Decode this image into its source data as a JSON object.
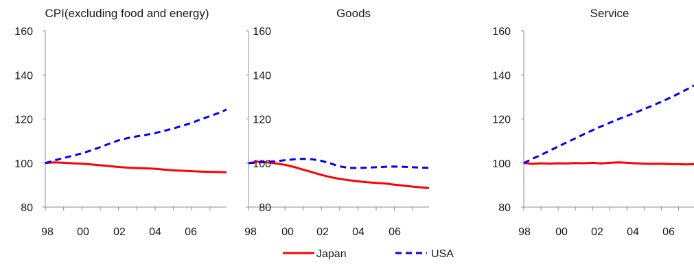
{
  "chart_data": [
    {
      "type": "line",
      "title": "CPI(excluding food and energy)",
      "xlabel": "",
      "ylabel": "",
      "x_tick_labels": [
        "98",
        "00",
        "02",
        "04",
        "06"
      ],
      "x_tick_years": [
        1998,
        2000,
        2002,
        2004,
        2006
      ],
      "xlim": [
        1998,
        2007.9
      ],
      "ylim": [
        80,
        160
      ],
      "y_ticks": [
        80,
        100,
        120,
        140,
        160
      ],
      "grid": false,
      "series": [
        {
          "name": "Japan",
          "color": "#ff0000",
          "style": "solid",
          "x": [
            1998,
            1998.5,
            1999,
            1999.5,
            2000,
            2000.5,
            2001,
            2001.5,
            2002,
            2002.5,
            2003,
            2003.5,
            2004,
            2004.5,
            2005,
            2005.5,
            2006,
            2006.5,
            2007,
            2007.5,
            2007.9
          ],
          "values": [
            100,
            100.3,
            100.1,
            99.9,
            99.7,
            99.4,
            99.0,
            98.6,
            98.2,
            97.9,
            97.7,
            97.6,
            97.4,
            97.0,
            96.7,
            96.5,
            96.3,
            96.1,
            96.0,
            95.9,
            95.8
          ]
        },
        {
          "name": "USA",
          "color": "#0000ff",
          "style": "dashed",
          "x": [
            1998,
            1998.5,
            1999,
            1999.5,
            2000,
            2000.5,
            2001,
            2001.5,
            2002,
            2002.5,
            2003,
            2003.5,
            2004,
            2004.5,
            2005,
            2005.5,
            2006,
            2006.5,
            2007,
            2007.5,
            2007.9
          ],
          "values": [
            100,
            101.2,
            102.3,
            103.3,
            104.4,
            105.7,
            107.2,
            108.8,
            110.3,
            111.3,
            112.1,
            112.8,
            113.6,
            114.6,
            115.7,
            116.9,
            118.3,
            119.8,
            121.3,
            122.8,
            124.3
          ]
        }
      ]
    },
    {
      "type": "line",
      "title": "Goods",
      "xlabel": "",
      "ylabel": "",
      "x_tick_labels": [
        "98",
        "00",
        "02",
        "04",
        "06"
      ],
      "x_tick_years": [
        1998,
        2000,
        2002,
        2004,
        2006
      ],
      "xlim": [
        1998,
        2007.9
      ],
      "ylim": [
        80,
        160
      ],
      "y_ticks": [
        80,
        100,
        120,
        140,
        160
      ],
      "grid": false,
      "series": [
        {
          "name": "Japan",
          "color": "#ff0000",
          "style": "solid",
          "x": [
            1998,
            1998.5,
            1999,
            1999.5,
            2000,
            2000.5,
            2001,
            2001.5,
            2002,
            2002.5,
            2003,
            2003.5,
            2004,
            2004.5,
            2005,
            2005.5,
            2006,
            2006.5,
            2007,
            2007.5,
            2007.9
          ],
          "values": [
            100,
            100.6,
            100.3,
            99.8,
            99.2,
            98.2,
            97.0,
            95.8,
            94.6,
            93.6,
            92.8,
            92.2,
            91.7,
            91.3,
            91.0,
            90.7,
            90.2,
            89.7,
            89.3,
            88.9,
            88.6
          ]
        },
        {
          "name": "USA",
          "color": "#0000ff",
          "style": "dashed",
          "x": [
            1998,
            1998.5,
            1999,
            1999.5,
            2000,
            2000.5,
            2001,
            2001.5,
            2002,
            2002.5,
            2003,
            2003.5,
            2004,
            2004.5,
            2005,
            2005.5,
            2006,
            2006.5,
            2007,
            2007.5,
            2007.9
          ],
          "values": [
            100,
            100.2,
            100.5,
            100.8,
            101.3,
            101.7,
            101.9,
            101.7,
            101.0,
            99.8,
            98.5,
            97.8,
            97.7,
            97.9,
            98.1,
            98.3,
            98.4,
            98.3,
            98.1,
            97.9,
            97.8
          ]
        }
      ]
    },
    {
      "type": "line",
      "title": "Service",
      "xlabel": "",
      "ylabel": "",
      "x_tick_labels": [
        "98",
        "00",
        "02",
        "04",
        "06"
      ],
      "x_tick_years": [
        1998,
        2000,
        2002,
        2004,
        2006
      ],
      "xlim": [
        1998,
        2007.9
      ],
      "ylim": [
        80,
        160
      ],
      "y_ticks": [
        80,
        100,
        120,
        140,
        160
      ],
      "grid": false,
      "series": [
        {
          "name": "Japan",
          "color": "#ff0000",
          "style": "solid",
          "x": [
            1998,
            1998.5,
            1999,
            1999.5,
            2000,
            2000.5,
            2001,
            2001.5,
            2002,
            2002.5,
            2003,
            2003.5,
            2004,
            2004.5,
            2005,
            2005.5,
            2006,
            2006.5,
            2007,
            2007.5,
            2007.9
          ],
          "values": [
            100,
            99.6,
            99.9,
            99.7,
            99.9,
            99.8,
            100.0,
            99.9,
            100.1,
            99.8,
            100.1,
            100.3,
            100.1,
            99.9,
            99.7,
            99.6,
            99.7,
            99.5,
            99.5,
            99.4,
            99.5
          ]
        },
        {
          "name": "USA",
          "color": "#0000ff",
          "style": "dashed",
          "x": [
            1998,
            1998.5,
            1999,
            1999.5,
            2000,
            2000.5,
            2001,
            2001.5,
            2002,
            2002.5,
            2003,
            2003.5,
            2004,
            2004.5,
            2005,
            2005.5,
            2006,
            2006.5,
            2007,
            2007.5,
            2007.9
          ],
          "values": [
            100,
            101.9,
            103.7,
            105.6,
            107.5,
            109.4,
            111.2,
            113.1,
            114.9,
            116.6,
            118.3,
            119.9,
            121.4,
            122.9,
            124.5,
            126.1,
            127.8,
            129.6,
            131.5,
            133.5,
            135.2
          ]
        }
      ]
    }
  ],
  "legend": {
    "placement": "bottom-center",
    "items": [
      {
        "label": "Japan",
        "color": "#ff0000",
        "style": "solid"
      },
      {
        "label": "USA",
        "color": "#0000ff",
        "style": "dashed"
      }
    ]
  }
}
